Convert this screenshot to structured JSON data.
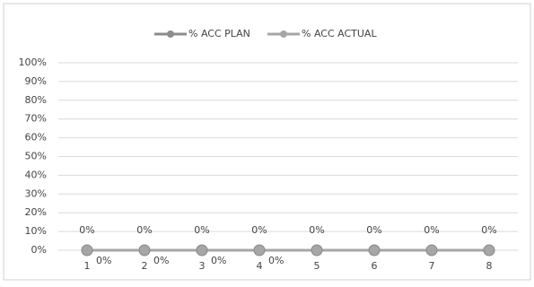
{
  "chart_data": {
    "type": "line",
    "categories": [
      "1",
      "2",
      "3",
      "4",
      "5",
      "6",
      "7",
      "8"
    ],
    "series": [
      {
        "name": "% ACC PLAN",
        "color": "#8c8c8c",
        "values": [
          0,
          0,
          0,
          0,
          0,
          0,
          0,
          0
        ],
        "value_labels": [
          "0%",
          "0%",
          "0%",
          "0%",
          "0%",
          "0%",
          "0%",
          "0%"
        ]
      },
      {
        "name": "% ACC ACTUAL",
        "color": "#a6a6a6",
        "values": [
          0,
          0,
          0,
          0,
          0,
          0,
          0,
          0
        ],
        "value_labels": [
          "0%",
          "0%",
          "0%",
          "0%",
          null,
          null,
          null,
          null
        ]
      }
    ],
    "ylim": [
      0,
      100
    ],
    "yticks": [
      {
        "value": 0,
        "label": "0%"
      },
      {
        "value": 10,
        "label": "10%"
      },
      {
        "value": 20,
        "label": "20%"
      },
      {
        "value": 30,
        "label": "30%"
      },
      {
        "value": 40,
        "label": "40%"
      },
      {
        "value": 50,
        "label": "50%"
      },
      {
        "value": 60,
        "label": "60%"
      },
      {
        "value": 70,
        "label": "70%"
      },
      {
        "value": 80,
        "label": "80%"
      },
      {
        "value": 90,
        "label": "90%"
      },
      {
        "value": 100,
        "label": "100%"
      }
    ],
    "grid": true,
    "legend": "top"
  }
}
